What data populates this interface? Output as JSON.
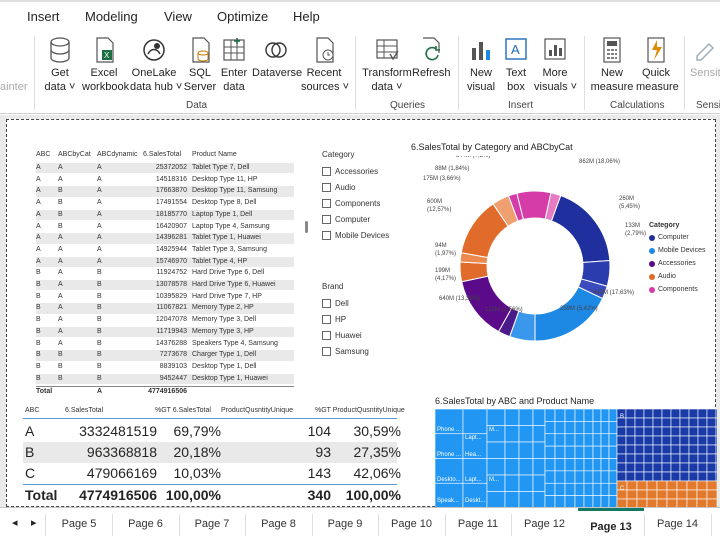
{
  "menu": {
    "items": [
      "Insert",
      "Modeling",
      "View",
      "Optimize",
      "Help"
    ]
  },
  "ribbon": {
    "painter_label": "ainter",
    "buttons": [
      {
        "label": "Get\ndata ˅",
        "icon": "database-icon"
      },
      {
        "label": "Excel\nworkbook",
        "icon": "excel-icon"
      },
      {
        "label": "OneLake\ndata hub ˅",
        "icon": "onelake-icon"
      },
      {
        "label": "SQL\nServer",
        "icon": "sql-server-icon"
      },
      {
        "label": "Enter\ndata",
        "icon": "table-icon"
      },
      {
        "label": "Dataverse",
        "icon": "dataverse-icon"
      },
      {
        "label": "Recent\nsources ˅",
        "icon": "recent-icon"
      },
      {
        "label": "Transform\ndata ˅",
        "icon": "transform-icon"
      },
      {
        "label": "Refresh",
        "icon": "refresh-icon"
      },
      {
        "label": "New\nvisual",
        "icon": "chart-icon"
      },
      {
        "label": "Text\nbox",
        "icon": "textbox-icon"
      },
      {
        "label": "More\nvisuals ˅",
        "icon": "more-visuals-icon"
      },
      {
        "label": "New\nmeasure",
        "icon": "calculator-icon"
      },
      {
        "label": "Quick\nmeasure",
        "icon": "quick-measure-icon"
      },
      {
        "label": "Sensiti",
        "icon": "sensitivity-icon"
      }
    ],
    "groups": [
      "Data",
      "Queries",
      "Insert",
      "Calculations",
      "Sensiti"
    ]
  },
  "detail_table": {
    "headers": [
      "ABC",
      "ABCbyCat",
      "ABCdynamic",
      "6.SalesTotal",
      "Product Name"
    ],
    "rows": [
      [
        "A",
        "A",
        "A",
        "25372052",
        "Tablet Type 7, Dell"
      ],
      [
        "A",
        "A",
        "A",
        "14518316",
        "Desktop Type 11, HP"
      ],
      [
        "A",
        "B",
        "A",
        "17663870",
        "Desktop Type 11, Samsung"
      ],
      [
        "A",
        "B",
        "A",
        "17491554",
        "Desktop Type 8, Dell"
      ],
      [
        "A",
        "B",
        "A",
        "18185770",
        "Laptop Type 1, Dell"
      ],
      [
        "A",
        "B",
        "A",
        "16420907",
        "Laptop Type 4, Samsung"
      ],
      [
        "A",
        "A",
        "A",
        "14396281",
        "Tablet Type 1, Huawei"
      ],
      [
        "A",
        "A",
        "A",
        "14925944",
        "Tablet Type 3, Samsung"
      ],
      [
        "A",
        "A",
        "A",
        "15746970",
        "Tablet Type 4, HP"
      ],
      [
        "B",
        "A",
        "B",
        "11924752",
        "Hard Drive Type 6, Dell"
      ],
      [
        "B",
        "A",
        "B",
        "13078578",
        "Hard Drive Type 6, Huawei"
      ],
      [
        "B",
        "A",
        "B",
        "10395829",
        "Hard Drive Type 7, HP"
      ],
      [
        "B",
        "A",
        "B",
        "11067821",
        "Memory Type 2, HP"
      ],
      [
        "B",
        "A",
        "B",
        "12047078",
        "Memory Type 3, Dell"
      ],
      [
        "B",
        "A",
        "B",
        "11719943",
        "Memory Type 3, HP"
      ],
      [
        "B",
        "A",
        "B",
        "14376288",
        "Speakers Type 4, Samsung"
      ],
      [
        "B",
        "B",
        "B",
        "7273678",
        "Charger Type 1, Dell"
      ],
      [
        "B",
        "B",
        "B",
        "8839103",
        "Desktop Type 1, Dell"
      ],
      [
        "B",
        "B",
        "B",
        "9452447",
        "Desktop Type 1, Huawei"
      ]
    ],
    "total": {
      "label": "Total",
      "abcdyn": "A",
      "sales": "4774916506"
    }
  },
  "slicer_category": {
    "title": "Category",
    "items": [
      "Accessories",
      "Audio",
      "Components",
      "Computer",
      "Mobile Devices"
    ]
  },
  "slicer_brand": {
    "title": "Brand",
    "items": [
      "Dell",
      "HP",
      "Huawei",
      "Samsung"
    ]
  },
  "donut": {
    "title": "6.SalesTotal by Category and ABCbyCat",
    "legend_title": "Category",
    "legend": [
      {
        "name": "Computer",
        "color": "#1f2f9e"
      },
      {
        "name": "Mobile Devices",
        "color": "#1e88e5"
      },
      {
        "name": "Accessories",
        "color": "#5b0a8a"
      },
      {
        "name": "Audio",
        "color": "#e06b2a"
      },
      {
        "name": "Components",
        "color": "#d63ca8"
      }
    ],
    "labels": [
      "862M (18,06%)",
      "260M\n(5,45%)",
      "133M\n(2,79%)",
      "842M (17,63%)",
      "259M (5,42%)",
      "122M (2,56%)",
      "640M (13,39%)",
      "199M\n(4,17%)",
      "94M\n(1,97%)",
      "600M\n(12,57%)",
      "175M (3,66%)",
      "88M (1,84%)",
      "344M (7,2%)",
      "102M\n(2,14%)"
    ]
  },
  "chart_data": [
    {
      "type": "pie",
      "title": "6.SalesTotal by Category and ABCbyCat",
      "legend_title": "Category",
      "categories": [
        "Computer",
        "Computer",
        "Computer",
        "Mobile Devices",
        "Mobile Devices",
        "Accessories",
        "Accessories",
        "Audio",
        "Audio",
        "Audio",
        "Components",
        "Components",
        "Components",
        "Components"
      ],
      "values": [
        862,
        260,
        133,
        842,
        259,
        122,
        640,
        199,
        94,
        600,
        175,
        88,
        344,
        102
      ],
      "percent_labels": [
        "18,06%",
        "5,45%",
        "2,79%",
        "17,63%",
        "5,42%",
        "2,56%",
        "13,39%",
        "4,17%",
        "1,97%",
        "12,57%",
        "3,66%",
        "1,84%",
        "7,2%",
        "2,14%"
      ],
      "colors": [
        "#1f2f9e",
        "#2a3cae",
        "#3a4bbd",
        "#1e88e5",
        "#3a98ec",
        "#4b1a8a",
        "#5b0a8a",
        "#e06b2a",
        "#ea8a4e",
        "#e06b2a",
        "#f0a070",
        "#d63ca8",
        "#d63ca8",
        "#e67cc4"
      ],
      "unit": "M"
    },
    {
      "type": "treemap",
      "title": "6.SalesTotal by ABC and Product Name",
      "groups": [
        "A",
        "B",
        "C"
      ],
      "visible_labels": [
        "Phone ...",
        "Lapt...",
        "M...",
        "Phone ...",
        "Hea...",
        "Deskto...",
        "Lapt...",
        "Speak...",
        "M...",
        "Deskt...",
        "B",
        "C"
      ]
    }
  ],
  "treemap": {
    "title": "6.SalesTotal by ABC and Product Name",
    "labels": [
      "Phone ...",
      "Lapt...",
      "M...",
      "Phone ...",
      "Hea...",
      "Deskto...",
      "Lapt...",
      "Speak...",
      "M...",
      "Deskt...",
      "B",
      "C"
    ]
  },
  "abc_table": {
    "headers": [
      "ABC",
      "6.SalesTotal",
      "%GT 6.SalesTotal",
      "ProductQusntityUnique",
      "%GT ProductQusntityUnique"
    ],
    "rows": [
      [
        "A",
        "3332481519",
        "69,79%",
        "104",
        "30,59%"
      ],
      [
        "B",
        "963368818",
        "20,18%",
        "93",
        "27,35%"
      ],
      [
        "C",
        "479066169",
        "10,03%",
        "143",
        "42,06%"
      ]
    ],
    "total": [
      "Total",
      "4774916506",
      "100,00%",
      "340",
      "100,00%"
    ]
  },
  "tabs": {
    "items": [
      "Page 5",
      "Page 6",
      "Page 7",
      "Page 8",
      "Page 9",
      "Page 10",
      "Page 11",
      "Page 12",
      "Page 13",
      "Page 14"
    ],
    "active": "Page 13"
  }
}
